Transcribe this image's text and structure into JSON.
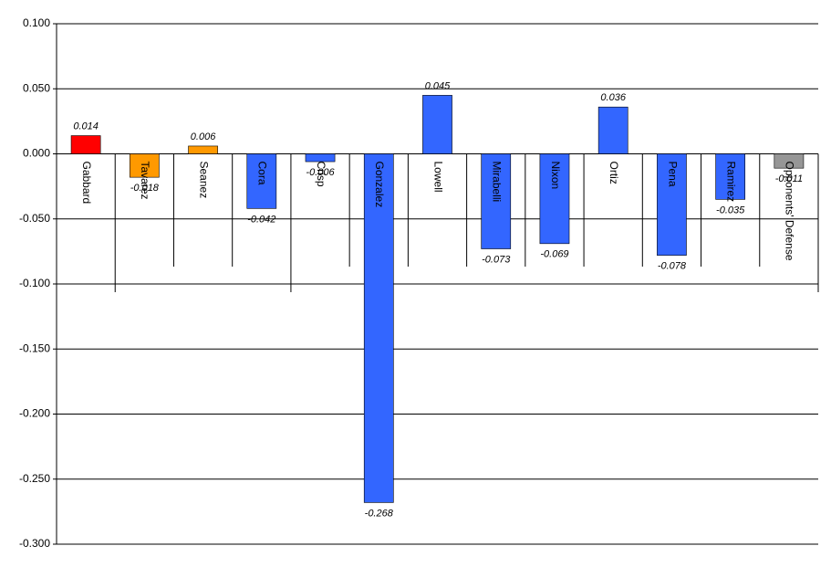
{
  "chart_data": {
    "type": "bar",
    "categories": [
      "Gabbard",
      "Tavarez",
      "Seanez",
      "Cora",
      "Crisp",
      "Gonzalez",
      "Lowell",
      "Mirabelli",
      "Nixon",
      "Ortiz",
      "Pena",
      "Ramirez",
      "Opponents' Defense"
    ],
    "values": [
      0.014,
      -0.018,
      0.006,
      -0.042,
      -0.006,
      -0.268,
      0.045,
      -0.073,
      -0.069,
      0.036,
      -0.078,
      -0.035,
      -0.011
    ],
    "colors": [
      "#ff0000",
      "#ff9900",
      "#ff9900",
      "#3366ff",
      "#3366ff",
      "#3366ff",
      "#3366ff",
      "#3366ff",
      "#3366ff",
      "#3366ff",
      "#3366ff",
      "#3366ff",
      "#969696"
    ],
    "ylim": [
      -0.3,
      0.1
    ],
    "yticks": [
      {
        "value": -0.3,
        "label": "-0.300"
      },
      {
        "value": -0.25,
        "label": "-0.250"
      },
      {
        "value": -0.2,
        "label": "-0.200"
      },
      {
        "value": -0.15,
        "label": "-0.150"
      },
      {
        "value": -0.1,
        "label": "-0.100"
      },
      {
        "value": -0.05,
        "label": "-0.050"
      },
      {
        "value": 0,
        "label": "0.000"
      },
      {
        "value": 0.05,
        "label": "0.050"
      },
      {
        "value": 0.1,
        "label": "0.100"
      }
    ],
    "grid": true
  }
}
